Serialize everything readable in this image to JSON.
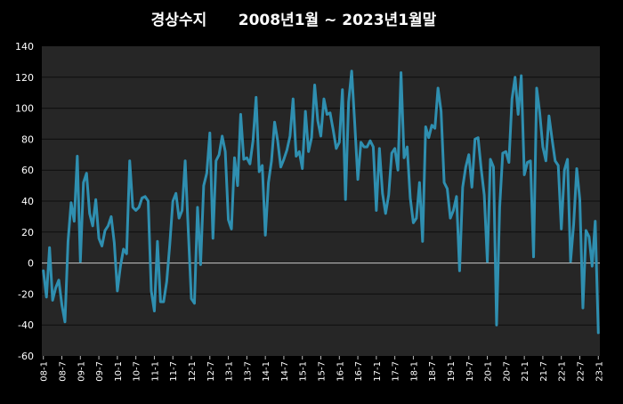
{
  "chart_data": {
    "type": "line",
    "title": "경상수지      2008년1월 ~ 2023년1월말",
    "xlabel": "",
    "ylabel": "",
    "ylim": [
      -60,
      140
    ],
    "yticks": [
      140,
      120,
      100,
      80,
      60,
      40,
      20,
      0,
      -20,
      -40,
      -60
    ],
    "grid": true,
    "legend": "none",
    "colors": {
      "background": "#000000",
      "plot_area": "#262626",
      "line": "#2f8fb0",
      "text": "#ffffff",
      "grid": "#0d0d0d"
    },
    "x_tick_labels": [
      "08-1",
      "08-7",
      "09-1",
      "09-7",
      "10-1",
      "10-7",
      "11-1",
      "11-7",
      "12-1",
      "12-7",
      "13-1",
      "13-7",
      "14-1",
      "14-7",
      "15-1",
      "15-7",
      "16-1",
      "16-7",
      "17-1",
      "17-7",
      "18-1",
      "18-7",
      "19-1",
      "19-7",
      "20-1",
      "20-7",
      "21-1",
      "21-7",
      "22-1",
      "22-7",
      "23-1"
    ],
    "x_tick_interval_months": 6,
    "series": [
      {
        "values": [
          -5,
          -22,
          10,
          -24,
          -16,
          -11,
          -27,
          -38,
          14,
          39,
          27,
          69,
          1,
          52,
          58,
          32,
          24,
          41,
          16,
          11,
          21,
          24,
          30,
          13,
          -18,
          -2,
          9,
          6,
          66,
          36,
          34,
          36,
          42,
          43,
          40,
          -18,
          -31,
          14,
          -25,
          -25,
          -12,
          12,
          40,
          45,
          29,
          34,
          66,
          21,
          -23,
          -26,
          36,
          -1,
          50,
          58,
          84,
          16,
          66,
          70,
          82,
          72,
          28,
          22,
          68,
          50,
          96,
          67,
          68,
          64,
          79,
          107,
          59,
          63,
          18,
          52,
          66,
          91,
          79,
          62,
          67,
          73,
          82,
          106,
          69,
          72,
          61,
          98,
          72,
          81,
          115,
          92,
          82,
          106,
          96,
          97,
          86,
          74,
          78,
          112,
          41,
          104,
          124,
          90,
          54,
          78,
          75,
          75,
          79,
          75,
          34,
          74,
          45,
          32,
          44,
          71,
          74,
          60,
          123,
          68,
          75,
          42,
          26,
          29,
          52,
          14,
          88,
          81,
          89,
          87,
          113,
          98,
          52,
          48,
          29,
          34,
          43,
          -5,
          49,
          62,
          70,
          49,
          80,
          81,
          61,
          44,
          1,
          67,
          62,
          -40,
          36,
          71,
          72,
          65,
          106,
          120,
          96,
          121,
          57,
          65,
          66,
          4,
          113,
          97,
          75,
          66,
          95,
          80,
          66,
          63,
          22,
          60,
          67,
          1,
          25,
          61,
          41,
          -29,
          21,
          17,
          -2,
          27,
          -45
        ]
      }
    ]
  }
}
